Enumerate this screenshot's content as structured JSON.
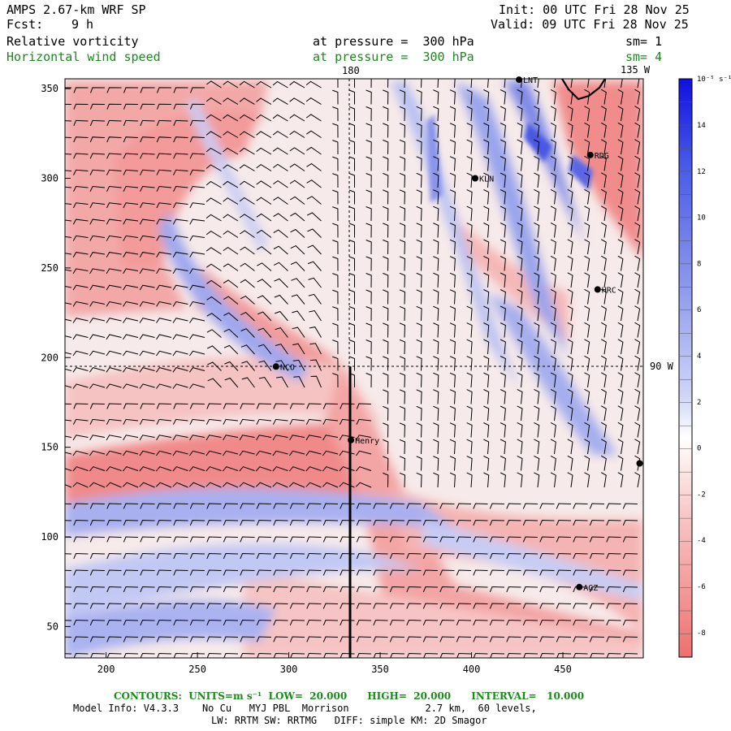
{
  "header": {
    "model": "AMPS 2.67-km WRF SP",
    "fcst_label": "Fcst:",
    "fcst_value": "9 h",
    "init": "Init: 00 UTC Fri 28 Nov 25",
    "valid": "Valid: 09 UTC Fri 28 Nov 25",
    "field1": "Relative vorticity",
    "field1_level": "at pressure =  300 hPa",
    "field1_sm": "sm= 1",
    "field2": "Horizontal wind speed",
    "field2_level": "at pressure =  300 hPa",
    "field2_sm": "sm= 4"
  },
  "map": {
    "lon_label_top": "180",
    "lon_label_topright": "135 W",
    "lon_label_right": "90 W",
    "x_ticks": [
      "200",
      "250",
      "300",
      "350",
      "400",
      "450"
    ],
    "y_ticks": [
      "350",
      "300",
      "250",
      "200",
      "150",
      "100",
      "50"
    ],
    "stations": [
      {
        "name": "LNT",
        "x_km": 426,
        "y_km": 355
      },
      {
        "name": "RDG",
        "x_km": 465,
        "y_km": 313
      },
      {
        "name": "KLN",
        "x_km": 402,
        "y_km": 300
      },
      {
        "name": "HRC",
        "x_km": 469,
        "y_km": 238
      },
      {
        "name": "NCO",
        "x_km": 293,
        "y_km": 195
      },
      {
        "name": "Henry",
        "x_km": 334,
        "y_km": 154
      },
      {
        "name": "",
        "x_km": 492,
        "y_km": 141
      },
      {
        "name": "AGZ",
        "x_km": 459,
        "y_km": 72
      }
    ]
  },
  "colorbar": {
    "units": "10⁻⁵ s⁻¹",
    "labels": [
      "14",
      "12",
      "10",
      "8",
      "6",
      "4",
      "2",
      "0",
      "-2",
      "-4",
      "-6",
      "-8"
    ]
  },
  "footer": {
    "contours": "CONTOURS:  UNITS=m s⁻¹  LOW=  20.000      HIGH=  20.000      INTERVAL=   10.000",
    "model_info": "Model Info: V4.3.3    No Cu   MYJ PBL  Morrison             2.7 km,  60 levels,",
    "physics": "LW: RRTM SW: RRTMG   DIFF: simple KM: 2D Smagor"
  }
}
